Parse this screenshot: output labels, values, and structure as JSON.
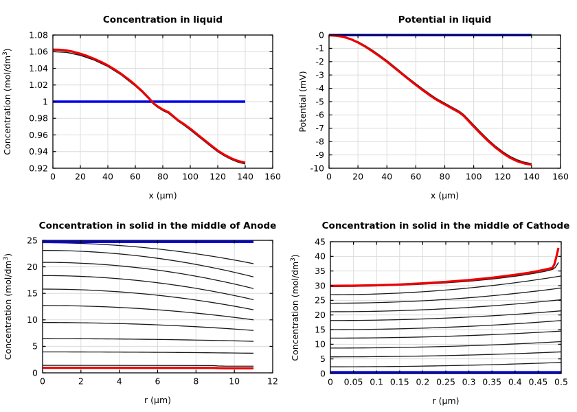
{
  "page": {
    "background": "#ffffff"
  },
  "colors": {
    "red_line": "#ee0000",
    "blue_line": "#0000e6",
    "black_line": "#1a1a1a",
    "grid": "#dcdcdc",
    "axis": "#000000"
  },
  "chart_data": [
    {
      "type": "line",
      "title": "Concentration in liquid",
      "xlabel": "x (µm)",
      "ylabel": "Concentration (mol/dm³)",
      "xlim": [
        0,
        160
      ],
      "ylim": [
        0.92,
        1.08
      ],
      "grid": true,
      "legend": "none",
      "rect": {
        "l": 77,
        "t": 51,
        "r": 397,
        "b": 245
      },
      "ylabel_x": 15,
      "xticks": [
        0,
        20,
        40,
        60,
        80,
        100,
        120,
        140,
        160
      ],
      "xtick_labels": [
        "0",
        "20",
        "40",
        "60",
        "80",
        "100",
        "120",
        "140",
        "160"
      ],
      "yticks": [
        0.92,
        0.94,
        0.96,
        0.98,
        1.0,
        1.02,
        1.04,
        1.06,
        1.08
      ],
      "ytick_labels": [
        "0.92",
        "0.94",
        "0.96",
        "0.98",
        "1",
        "1.02",
        "1.04",
        "1.06",
        "1.08"
      ],
      "series": [
        {
          "name": "concentration-reference-curve",
          "color": "#1a1a1a",
          "width": 1.6,
          "points": [
            [
              0,
              1.06
            ],
            [
              10,
              1.0592
            ],
            [
              20,
              1.0556
            ],
            [
              30,
              1.05
            ],
            [
              40,
              1.0422
            ],
            [
              50,
              1.0318
            ],
            [
              60,
              1.0188
            ],
            [
              65,
              1.0113
            ],
            [
              70,
              1.0028
            ],
            [
              73,
              0.9974
            ],
            [
              76,
              0.9934
            ],
            [
              80,
              0.9893
            ],
            [
              84,
              0.9862
            ],
            [
              88,
              0.9808
            ],
            [
              91,
              0.9766
            ],
            [
              95,
              0.9722
            ],
            [
              100,
              0.966
            ],
            [
              105,
              0.9594
            ],
            [
              110,
              0.9528
            ],
            [
              115,
              0.9462
            ],
            [
              120,
              0.9398
            ],
            [
              125,
              0.9347
            ],
            [
              130,
              0.9305
            ],
            [
              135,
              0.9272
            ],
            [
              140,
              0.9252
            ]
          ]
        },
        {
          "name": "initial-concentration-line",
          "color": "#0000e6",
          "width": 3.4,
          "points": [
            [
              0,
              1.0
            ],
            [
              140,
              1.0
            ]
          ]
        },
        {
          "name": "concentration-curve",
          "color": "#ee0000",
          "width": 3.2,
          "points": [
            [
              0,
              1.0625
            ],
            [
              5,
              1.0623
            ],
            [
              10,
              1.0615
            ],
            [
              15,
              1.0598
            ],
            [
              20,
              1.0575
            ],
            [
              25,
              1.0548
            ],
            [
              30,
              1.0515
            ],
            [
              35,
              1.0478
            ],
            [
              40,
              1.0435
            ],
            [
              45,
              1.0385
            ],
            [
              50,
              1.033
            ],
            [
              55,
              1.0268
            ],
            [
              60,
              1.02
            ],
            [
              65,
              1.0125
            ],
            [
              70,
              1.004
            ],
            [
              73,
              0.9985
            ],
            [
              76,
              0.9945
            ],
            [
              80,
              0.9905
            ],
            [
              84,
              0.9875
            ],
            [
              88,
              0.982
            ],
            [
              91,
              0.9778
            ],
            [
              95,
              0.9735
            ],
            [
              100,
              0.9675
            ],
            [
              105,
              0.9608
            ],
            [
              110,
              0.9542
            ],
            [
              115,
              0.9476
            ],
            [
              120,
              0.9412
            ],
            [
              125,
              0.936
            ],
            [
              130,
              0.9318
            ],
            [
              135,
              0.9286
            ],
            [
              140,
              0.9268
            ]
          ]
        }
      ]
    },
    {
      "type": "line",
      "title": "Potential in liquid",
      "xlabel": "x (µm)",
      "ylabel": "Potential (mV)",
      "xlim": [
        0,
        160
      ],
      "ylim": [
        -10,
        0
      ],
      "grid": true,
      "legend": "none",
      "rect": {
        "l": 59,
        "t": 51,
        "r": 396,
        "b": 245
      },
      "ylabel_x": 25,
      "xticks": [
        0,
        20,
        40,
        60,
        80,
        100,
        120,
        140,
        160
      ],
      "xtick_labels": [
        "0",
        "20",
        "40",
        "60",
        "80",
        "100",
        "120",
        "140",
        "160"
      ],
      "yticks": [
        0,
        -1,
        -2,
        -3,
        -4,
        -5,
        -6,
        -7,
        -8,
        -9,
        -10
      ],
      "ytick_labels": [
        "0",
        "-1",
        "-2",
        "-3",
        "-4",
        "-5",
        "-6",
        "-7",
        "-8",
        "-9",
        "-10"
      ],
      "series": [
        {
          "name": "potential-reference-curve",
          "color": "#1a1a1a",
          "width": 1.6,
          "points": [
            [
              0,
              -0.01
            ],
            [
              5,
              -0.04
            ],
            [
              10,
              -0.12
            ],
            [
              15,
              -0.28
            ],
            [
              20,
              -0.5
            ],
            [
              25,
              -0.8
            ],
            [
              30,
              -1.14
            ],
            [
              35,
              -1.52
            ],
            [
              40,
              -1.92
            ],
            [
              45,
              -2.36
            ],
            [
              50,
              -2.8
            ],
            [
              55,
              -3.24
            ],
            [
              60,
              -3.66
            ],
            [
              65,
              -4.07
            ],
            [
              70,
              -4.46
            ],
            [
              74,
              -4.76
            ],
            [
              78,
              -5.0
            ],
            [
              82,
              -5.24
            ],
            [
              86,
              -5.48
            ],
            [
              90,
              -5.72
            ],
            [
              93,
              -5.97
            ],
            [
              96,
              -6.3
            ],
            [
              100,
              -6.76
            ],
            [
              105,
              -7.32
            ],
            [
              110,
              -7.86
            ],
            [
              115,
              -8.34
            ],
            [
              120,
              -8.76
            ],
            [
              125,
              -9.11
            ],
            [
              130,
              -9.37
            ],
            [
              135,
              -9.55
            ],
            [
              140,
              -9.66
            ]
          ]
        },
        {
          "name": "zero-potential-line",
          "color": "#0000e6",
          "width": 3.4,
          "points": [
            [
              0,
              0
            ],
            [
              140,
              0
            ]
          ]
        },
        {
          "name": "potential-curve",
          "color": "#ee0000",
          "width": 3.2,
          "points": [
            [
              0,
              -0.02
            ],
            [
              5,
              -0.06
            ],
            [
              10,
              -0.14
            ],
            [
              15,
              -0.31
            ],
            [
              20,
              -0.56
            ],
            [
              25,
              -0.87
            ],
            [
              30,
              -1.22
            ],
            [
              35,
              -1.6
            ],
            [
              40,
              -2.0
            ],
            [
              45,
              -2.44
            ],
            [
              50,
              -2.88
            ],
            [
              55,
              -3.32
            ],
            [
              60,
              -3.75
            ],
            [
              65,
              -4.16
            ],
            [
              70,
              -4.55
            ],
            [
              74,
              -4.84
            ],
            [
              78,
              -5.09
            ],
            [
              82,
              -5.33
            ],
            [
              86,
              -5.57
            ],
            [
              90,
              -5.81
            ],
            [
              93,
              -6.06
            ],
            [
              96,
              -6.4
            ],
            [
              100,
              -6.87
            ],
            [
              105,
              -7.43
            ],
            [
              110,
              -7.96
            ],
            [
              115,
              -8.44
            ],
            [
              120,
              -8.86
            ],
            [
              125,
              -9.21
            ],
            [
              130,
              -9.47
            ],
            [
              135,
              -9.64
            ],
            [
              140,
              -9.74
            ]
          ]
        }
      ]
    },
    {
      "type": "line",
      "title": "Concentration in solid in the middle of Anode",
      "xlabel": "r (µm)",
      "ylabel": "Concentration (mol/dm³)",
      "xlim": [
        0,
        12
      ],
      "ylim": [
        0,
        25
      ],
      "grid": true,
      "legend": "none",
      "rect": {
        "l": 62,
        "t": 50,
        "r": 397,
        "b": 243
      },
      "ylabel_x": 16,
      "xticks": [
        0,
        2,
        4,
        6,
        8,
        10,
        12
      ],
      "xtick_labels": [
        "0",
        "2",
        "4",
        "6",
        "8",
        "10",
        "12"
      ],
      "yticks": [
        0,
        5,
        10,
        15,
        20,
        25
      ],
      "ytick_labels": [
        "0",
        "5",
        "10",
        "15",
        "20",
        "25"
      ],
      "series": [
        {
          "name": "solid-concentration-time-profiles",
          "color": "#1a1a1a",
          "width": 1.3,
          "family": {
            "x_end": 11,
            "exponent": 2,
            "pairs": [
              [
                24.55,
                20.6
              ],
              [
                23.1,
                18.1
              ],
              [
                20.85,
                15.9
              ],
              [
                18.35,
                13.8
              ],
              [
                15.8,
                11.9
              ],
              [
                12.7,
                10.0
              ],
              [
                9.5,
                8.0
              ],
              [
                6.45,
                5.95
              ],
              [
                3.95,
                3.7
              ]
            ]
          }
        },
        {
          "name": "solid-concentration-last-profile",
          "color": "#1a1a1a",
          "width": 1.3,
          "points": [
            [
              0,
              1.42
            ],
            [
              8.9,
              1.38
            ],
            [
              9.15,
              1.3
            ],
            [
              9.5,
              1.27
            ],
            [
              11,
              1.26
            ]
          ]
        },
        {
          "name": "max-concentration-line",
          "color": "#0000e6",
          "width": 3.4,
          "points": [
            [
              0,
              24.7
            ],
            [
              11,
              24.7
            ]
          ]
        },
        {
          "name": "final-concentration-line",
          "color": "#ee0000",
          "width": 3.2,
          "points": [
            [
              0,
              0.95
            ],
            [
              8.9,
              0.94
            ],
            [
              9.2,
              0.88
            ],
            [
              9.5,
              0.85
            ],
            [
              11,
              0.85
            ]
          ]
        }
      ]
    },
    {
      "type": "line",
      "title": "Concentration in solid in the middle of Cathode",
      "xlabel": "r (µm)",
      "ylabel": "Concentration (mol/dm³)",
      "xlim": [
        0,
        0.5
      ],
      "ylim": [
        0,
        45
      ],
      "grid": true,
      "legend": "none",
      "rect": {
        "l": 61,
        "t": 52,
        "r": 397,
        "b": 244
      },
      "ylabel_x": 14,
      "xticks": [
        0,
        0.05,
        0.1,
        0.15,
        0.2,
        0.25,
        0.3,
        0.35,
        0.4,
        0.45,
        0.5
      ],
      "xtick_labels": [
        "0",
        "0.05",
        "0.1",
        "0.15",
        "0.2",
        "0.25",
        "0.3",
        "0.35",
        "0.4",
        "0.45",
        "0.5"
      ],
      "yticks": [
        0,
        5,
        10,
        15,
        20,
        25,
        30,
        35,
        40,
        45
      ],
      "ytick_labels": [
        "0",
        "5",
        "10",
        "15",
        "20",
        "25",
        "30",
        "35",
        "40",
        "45"
      ],
      "series": [
        {
          "name": "solid-concentration-time-profiles",
          "color": "#1a1a1a",
          "width": 1.3,
          "family": {
            "x_end": 0.5,
            "exponent": 2,
            "pairs": [
              [
                26.9,
                33.3
              ],
              [
                24.0,
                29.2
              ],
              [
                21.1,
                25.2
              ],
              [
                18.1,
                21.4
              ],
              [
                15.0,
                18.1
              ],
              [
                12.1,
                14.5
              ],
              [
                8.7,
                10.9
              ],
              [
                5.7,
                7.4
              ],
              [
                2.3,
                3.8
              ]
            ]
          }
        },
        {
          "name": "solid-concentration-last-profile",
          "color": "#1a1a1a",
          "width": 1.4,
          "points": [
            [
              0,
              29.7
            ],
            [
              0.05,
              29.75
            ],
            [
              0.1,
              29.9
            ],
            [
              0.15,
              30.15
            ],
            [
              0.2,
              30.5
            ],
            [
              0.25,
              30.95
            ],
            [
              0.3,
              31.5
            ],
            [
              0.35,
              32.25
            ],
            [
              0.4,
              33.2
            ],
            [
              0.43,
              33.9
            ],
            [
              0.45,
              34.45
            ],
            [
              0.465,
              34.9
            ],
            [
              0.475,
              35.3
            ],
            [
              0.482,
              35.6
            ],
            [
              0.487,
              36.2
            ],
            [
              0.491,
              37.1
            ],
            [
              0.494,
              37.9
            ]
          ]
        },
        {
          "name": "min-concentration-line",
          "color": "#0000e6",
          "width": 3.4,
          "points": [
            [
              0,
              0.45
            ],
            [
              0.5,
              0.45
            ]
          ]
        },
        {
          "name": "final-concentration-curve",
          "color": "#ee0000",
          "width": 3.2,
          "points": [
            [
              0,
              29.95
            ],
            [
              0.05,
              30.0
            ],
            [
              0.1,
              30.15
            ],
            [
              0.15,
              30.4
            ],
            [
              0.2,
              30.8
            ],
            [
              0.25,
              31.3
            ],
            [
              0.3,
              31.9
            ],
            [
              0.35,
              32.7
            ],
            [
              0.4,
              33.7
            ],
            [
              0.43,
              34.4
            ],
            [
              0.45,
              35.0
            ],
            [
              0.465,
              35.5
            ],
            [
              0.475,
              35.85
            ],
            [
              0.481,
              36.05
            ],
            [
              0.485,
              37.2
            ],
            [
              0.489,
              39.5
            ],
            [
              0.492,
              41.5
            ],
            [
              0.494,
              42.9
            ]
          ]
        }
      ]
    }
  ]
}
